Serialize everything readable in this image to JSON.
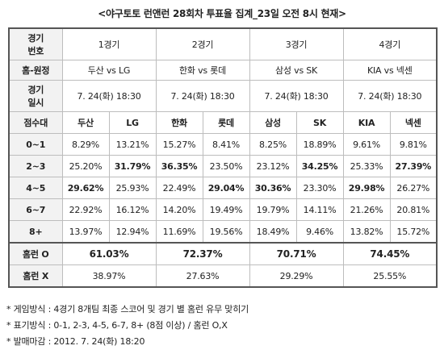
{
  "title": "<야구토토 런앤런 28회차 투표율 집계_23일 오전 8시 현재>",
  "labels": {
    "game_no": [
      "경기",
      "번호"
    ],
    "home_away": "홈-원정",
    "game_date": [
      "경기",
      "일시"
    ],
    "score_band": "점수대",
    "homerun_o": "홈런 O",
    "homerun_x": "홈런 X"
  },
  "games": [
    {
      "name": "1경기",
      "matchup": "두산 vs LG",
      "date": "7. 24(화) 18:30",
      "teams": [
        "두산",
        "LG"
      ],
      "homerun_o": "61.03%",
      "homerun_x": "38.97%"
    },
    {
      "name": "2경기",
      "matchup": "한화 vs 롯데",
      "date": "7. 24(화) 18:30",
      "teams": [
        "한화",
        "롯데"
      ],
      "homerun_o": "72.37%",
      "homerun_x": "27.63%"
    },
    {
      "name": "3경기",
      "matchup": "삼성 vs SK",
      "date": "7. 24(화) 18:30",
      "teams": [
        "삼성",
        "SK"
      ],
      "homerun_o": "70.71%",
      "homerun_x": "29.29%"
    },
    {
      "name": "4경기",
      "matchup": "KIA vs 넥센",
      "date": "7. 24(화) 18:30",
      "teams": [
        "KIA",
        "넥센"
      ],
      "homerun_o": "74.45%",
      "homerun_x": "25.55%"
    }
  ],
  "rows": [
    {
      "band": "0~1",
      "values": [
        "8.29%",
        "13.21%",
        "15.27%",
        "8.41%",
        "8.25%",
        "18.89%",
        "9.61%",
        "9.81%"
      ],
      "bold": [
        false,
        false,
        false,
        false,
        false,
        false,
        false,
        false
      ]
    },
    {
      "band": "2~3",
      "values": [
        "25.20%",
        "31.79%",
        "36.35%",
        "23.50%",
        "23.12%",
        "34.25%",
        "25.33%",
        "27.39%"
      ],
      "bold": [
        false,
        true,
        true,
        false,
        false,
        true,
        false,
        true
      ]
    },
    {
      "band": "4~5",
      "values": [
        "29.62%",
        "25.93%",
        "22.49%",
        "29.04%",
        "30.36%",
        "23.30%",
        "29.98%",
        "26.27%"
      ],
      "bold": [
        true,
        false,
        false,
        true,
        true,
        false,
        true,
        false
      ]
    },
    {
      "band": "6~7",
      "values": [
        "22.92%",
        "16.12%",
        "14.20%",
        "19.49%",
        "19.79%",
        "14.11%",
        "21.26%",
        "20.81%"
      ],
      "bold": [
        false,
        false,
        false,
        false,
        false,
        false,
        false,
        false
      ]
    },
    {
      "band": "8+",
      "values": [
        "13.97%",
        "12.94%",
        "11.69%",
        "19.56%",
        "18.49%",
        "9.46%",
        "13.82%",
        "15.72%"
      ],
      "bold": [
        false,
        false,
        false,
        false,
        false,
        false,
        false,
        false
      ]
    }
  ],
  "notes": [
    "* 게임방식 : 4경기 8개팀 최종 스코어 및 경기 별 홈런 유무 맞히기",
    "* 표기방식 : 0-1, 2-3, 4-5, 6-7, 8+ (8점 이상) / 홈런 O,X",
    "* 발매마감 : 2012. 7. 24(화) 18:20"
  ]
}
